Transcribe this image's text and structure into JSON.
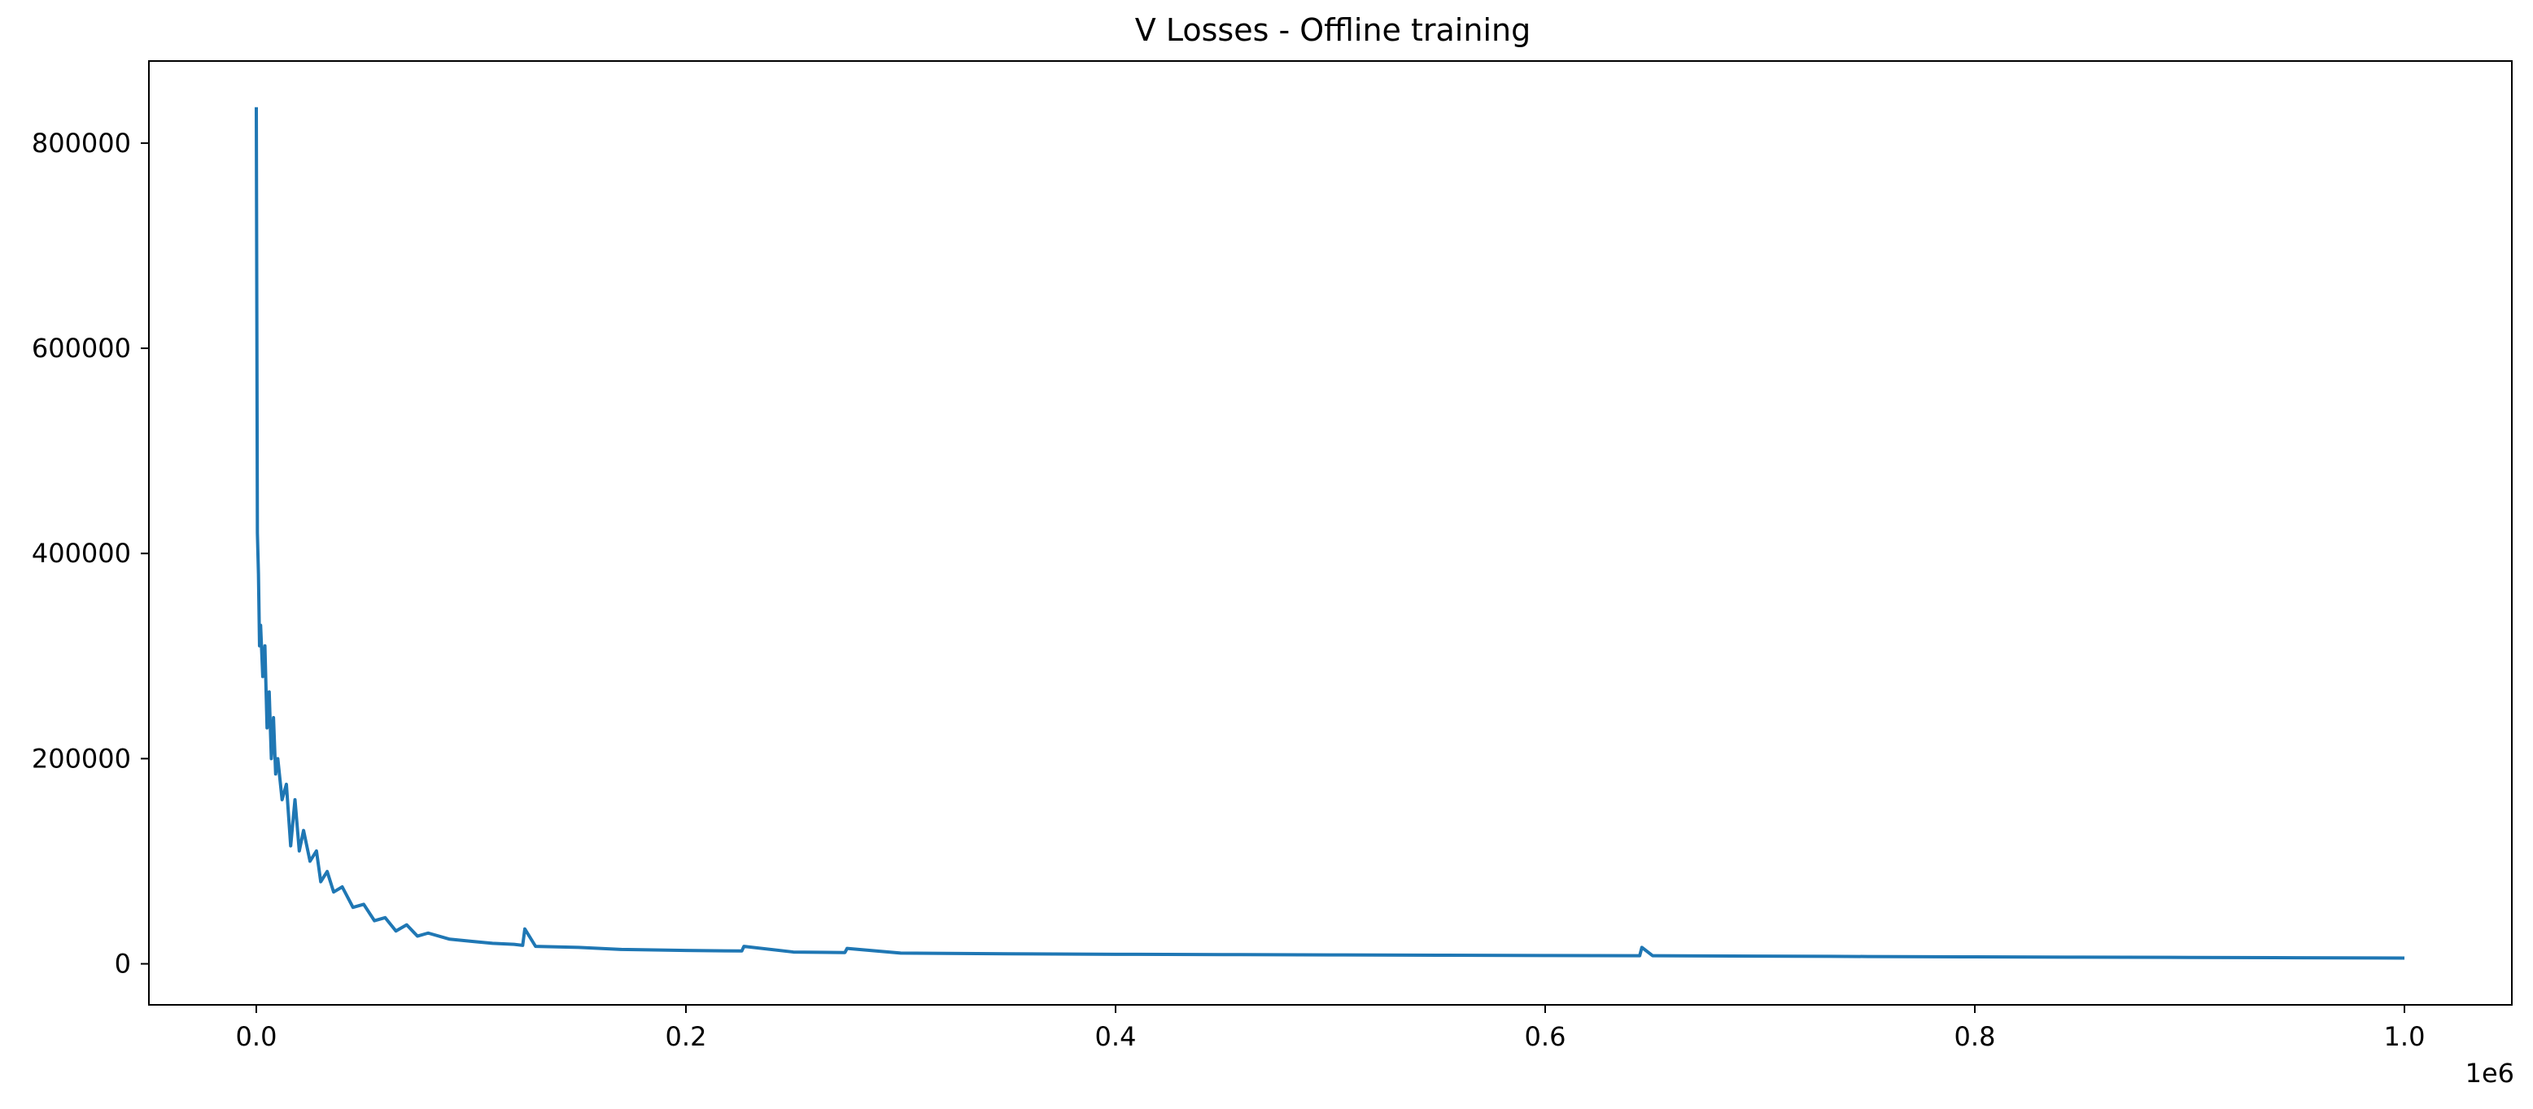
{
  "chart_data": {
    "type": "line",
    "title": "V Losses - Offline training",
    "xlabel": "",
    "ylabel": "",
    "x_offset_label": "1e6",
    "xlim": [
      -0.05,
      1.05
    ],
    "ylim": [
      -40000,
      880000
    ],
    "x_ticks": [
      0.0,
      0.2,
      0.4,
      0.6,
      0.8,
      1.0
    ],
    "x_tick_labels": [
      "0.0",
      "0.2",
      "0.4",
      "0.6",
      "0.8",
      "1.0"
    ],
    "y_ticks": [
      0,
      200000,
      400000,
      600000,
      800000
    ],
    "y_tick_labels": [
      "0",
      "200000",
      "400000",
      "600000",
      "800000"
    ],
    "grid": false,
    "legend": "none",
    "line_color": "#1f77b4",
    "series": [
      {
        "x": [
          0.0,
          0.0005,
          0.001,
          0.0015,
          0.002,
          0.003,
          0.004,
          0.005,
          0.006,
          0.007,
          0.008,
          0.009,
          0.01,
          0.012,
          0.014,
          0.016,
          0.018,
          0.02,
          0.022,
          0.025,
          0.028,
          0.03,
          0.033,
          0.036,
          0.04,
          0.045,
          0.05,
          0.055,
          0.06,
          0.065,
          0.07,
          0.075,
          0.08,
          0.09,
          0.1,
          0.11,
          0.12,
          0.124,
          0.125,
          0.13,
          0.14,
          0.15,
          0.17,
          0.2,
          0.226,
          0.227,
          0.25,
          0.274,
          0.275,
          0.3,
          0.35,
          0.4,
          0.45,
          0.5,
          0.55,
          0.6,
          0.644,
          0.645,
          0.65,
          0.7,
          0.733,
          0.75,
          0.8,
          0.85,
          0.87,
          0.9,
          0.95,
          1.0
        ],
        "y": [
          835000,
          420000,
          380000,
          310000,
          330000,
          280000,
          310000,
          230000,
          265000,
          200000,
          240000,
          185000,
          200000,
          160000,
          175000,
          115000,
          160000,
          110000,
          130000,
          100000,
          110000,
          80000,
          90000,
          70000,
          75000,
          55000,
          58000,
          42000,
          45000,
          32000,
          38000,
          27000,
          30000,
          24000,
          22000,
          20000,
          19000,
          18000,
          34000,
          17000,
          16500,
          16000,
          14000,
          13000,
          12500,
          17000,
          11500,
          11000,
          15000,
          10500,
          9800,
          9300,
          9000,
          8700,
          8400,
          8100,
          7900,
          16000,
          7900,
          7500,
          7300,
          7100,
          6800,
          6500,
          6400,
          6200,
          5900,
          5600
        ]
      }
    ]
  }
}
